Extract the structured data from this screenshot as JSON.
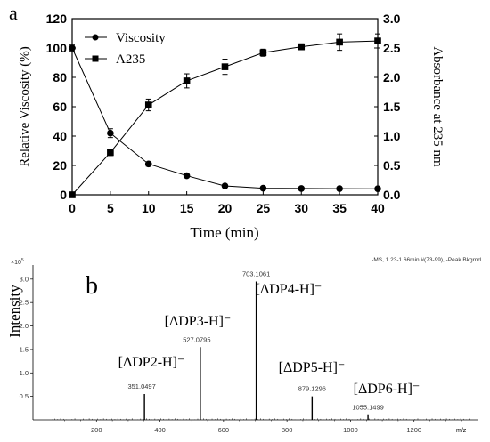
{
  "panel_a": {
    "label": "a",
    "legend": [
      {
        "name": "Viscosity",
        "marker": "circle"
      },
      {
        "name": "A235",
        "marker": "square"
      }
    ]
  },
  "panel_b": {
    "label": "b",
    "header_text": "-MS, 1.23-1.66min #(73-99), -Peak Bkgrnd",
    "scale_label": "×10",
    "scale_exp": "5"
  },
  "chart_data": [
    {
      "type": "line",
      "xlabel": "Time (min)",
      "ylabel": "Relative Viscosity (%)",
      "y2label": "Absorbance at 235 nm",
      "x": [
        0,
        5,
        10,
        15,
        20,
        25,
        30,
        35,
        40
      ],
      "xlim": [
        0,
        40
      ],
      "xticks": [
        "0",
        "5",
        "10",
        "15",
        "20",
        "25",
        "30",
        "35",
        "40"
      ],
      "ylim": [
        0,
        120
      ],
      "yticks": [
        "0",
        "20",
        "40",
        "60",
        "80",
        "100",
        "120"
      ],
      "y2lim": [
        0,
        3.0
      ],
      "y2ticks": [
        "0.0",
        "0.5",
        "1.0",
        "1.5",
        "2.0",
        "2.5",
        "3.0"
      ],
      "legend_position": "top-left",
      "series": [
        {
          "name": "Viscosity",
          "axis": "left",
          "marker": "circle",
          "values": [
            100,
            42,
            21,
            13,
            6,
            4.5,
            4.3,
            4.2,
            4.1
          ],
          "errors": [
            2,
            3,
            1.5,
            1,
            0.8,
            0.5,
            0.5,
            0.5,
            0.5
          ]
        },
        {
          "name": "A235",
          "axis": "right",
          "marker": "square",
          "values": [
            0.0,
            0.72,
            1.53,
            1.94,
            2.18,
            2.42,
            2.52,
            2.6,
            2.62
          ],
          "errors": [
            0.0,
            0.05,
            0.1,
            0.12,
            0.13,
            0.06,
            0.05,
            0.14,
            0.12
          ]
        }
      ]
    },
    {
      "type": "bar",
      "subtype": "mass-spectrum",
      "xlabel": "m/z",
      "ylabel": "Intensity",
      "xlim": [
        0,
        1400
      ],
      "xticks": [
        "200",
        "400",
        "600",
        "800",
        "1000",
        "1200"
      ],
      "xtick_values": [
        200,
        400,
        600,
        800,
        1000,
        1200
      ],
      "ylim": [
        0,
        3.3
      ],
      "yticks": [
        "0.5",
        "1.0",
        "1.5",
        "2.0",
        "2.5",
        "3.0"
      ],
      "ytick_values": [
        0.5,
        1.0,
        1.5,
        2.0,
        2.5,
        3.0
      ],
      "peaks": [
        {
          "mz": 351.0497,
          "intensity": 0.55,
          "mz_label": "351.0497",
          "ion_label": "[ΔDP2-H]⁻"
        },
        {
          "mz": 527.0795,
          "intensity": 1.55,
          "mz_label": "527.0795",
          "ion_label": "[ΔDP3-H]⁻"
        },
        {
          "mz": 703.1061,
          "intensity": 2.95,
          "mz_label": "703.1061",
          "ion_label": "[ΔDP4-H]⁻"
        },
        {
          "mz": 879.1296,
          "intensity": 0.5,
          "mz_label": "879.1296",
          "ion_label": "[ΔDP5-H]⁻"
        },
        {
          "mz": 1055.1499,
          "intensity": 0.1,
          "mz_label": "1055.1499",
          "ion_label": "[ΔDP6-H]⁻"
        }
      ]
    }
  ]
}
